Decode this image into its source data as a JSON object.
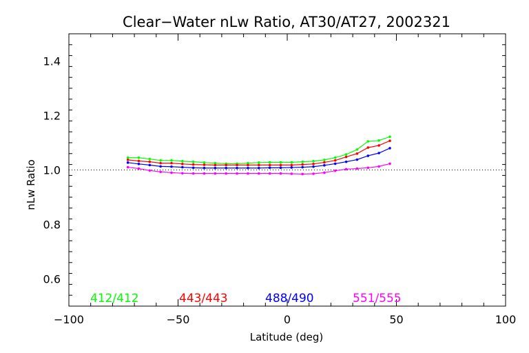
{
  "chart_data": {
    "type": "line",
    "title": "Clear−Water nLw Ratio, AT30/AT27, 2002321",
    "xlabel": "Latitude (deg)",
    "ylabel": "nLw Ratio",
    "xlim": [
      -100,
      100
    ],
    "ylim": [
      0.5,
      1.5
    ],
    "x_ticks": [
      -100,
      -50,
      0,
      50,
      100
    ],
    "x_tick_labels": [
      "−100",
      "−50",
      "0",
      "50",
      "100"
    ],
    "y_ticks": [
      0.6,
      0.8,
      1.0,
      1.2,
      1.4
    ],
    "y_tick_labels": [
      "0.6",
      "0.8",
      "1.0",
      "1.2",
      "1.4"
    ],
    "reference_line": 1.0,
    "x": [
      -73,
      -68,
      -63,
      -58,
      -53,
      -48,
      -43,
      -38,
      -33,
      -28,
      -23,
      -18,
      -13,
      -8,
      -3,
      2,
      7,
      12,
      17,
      22,
      27,
      32,
      37,
      42,
      47
    ],
    "series": [
      {
        "name": "412/412",
        "color": "#00ff00",
        "values": [
          1.045,
          1.045,
          1.04,
          1.035,
          1.035,
          1.032,
          1.03,
          1.027,
          1.025,
          1.023,
          1.023,
          1.025,
          1.027,
          1.028,
          1.028,
          1.028,
          1.03,
          1.032,
          1.037,
          1.045,
          1.057,
          1.075,
          1.105,
          1.108,
          1.122
        ]
      },
      {
        "name": "443/443",
        "color": "#ff0000",
        "values": [
          1.037,
          1.033,
          1.03,
          1.025,
          1.025,
          1.022,
          1.02,
          1.019,
          1.018,
          1.018,
          1.018,
          1.018,
          1.018,
          1.018,
          1.018,
          1.018,
          1.02,
          1.022,
          1.028,
          1.035,
          1.048,
          1.06,
          1.082,
          1.09,
          1.107
        ]
      },
      {
        "name": "488/490",
        "color": "#0000ff",
        "values": [
          1.027,
          1.022,
          1.018,
          1.013,
          1.012,
          1.01,
          1.008,
          1.007,
          1.007,
          1.007,
          1.007,
          1.007,
          1.007,
          1.008,
          1.008,
          1.009,
          1.01,
          1.012,
          1.017,
          1.023,
          1.03,
          1.038,
          1.052,
          1.062,
          1.08
        ]
      },
      {
        "name": "551/555",
        "color": "#ff00ff",
        "values": [
          1.01,
          1.005,
          0.998,
          0.993,
          0.99,
          0.988,
          0.987,
          0.987,
          0.987,
          0.987,
          0.987,
          0.987,
          0.987,
          0.987,
          0.987,
          0.986,
          0.985,
          0.986,
          0.99,
          0.997,
          1.003,
          1.005,
          1.008,
          1.013,
          1.023
        ]
      }
    ]
  }
}
